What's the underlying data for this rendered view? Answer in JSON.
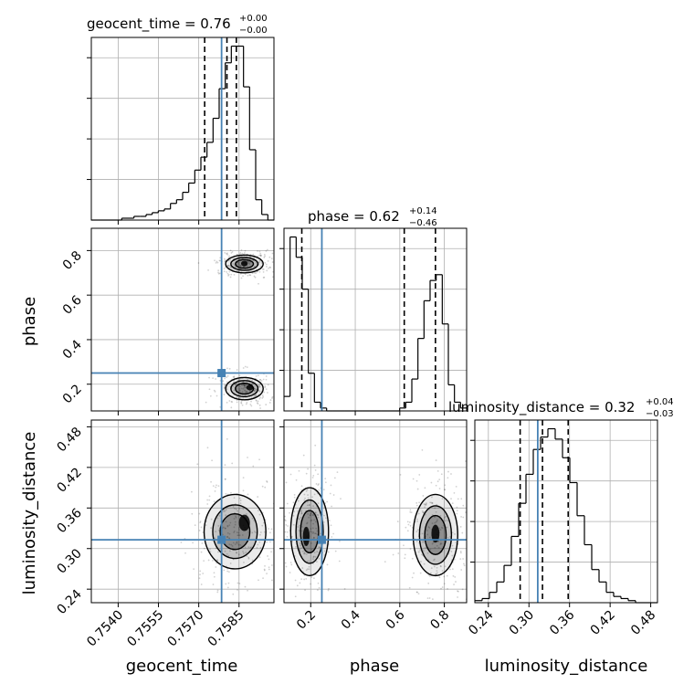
{
  "chart_data": {
    "type": "corner",
    "parameters": [
      "geocent_time",
      "phase",
      "luminosity_distance"
    ],
    "truths": {
      "geocent_time": 0.75785,
      "phase": 0.25,
      "luminosity_distance": 0.313
    },
    "axes": {
      "geocent_time": {
        "range": [
          0.753,
          0.7598
        ],
        "ticks": [
          0.754,
          0.7555,
          0.757,
          0.7585
        ],
        "tick_labels": [
          "0.7540",
          "0.7555",
          "0.7570",
          "0.7585"
        ],
        "label": "geocent_time"
      },
      "phase": {
        "range": [
          0.08,
          0.9
        ],
        "ticks": [
          0.2,
          0.4,
          0.6,
          0.8
        ],
        "tick_labels": [
          "0.2",
          "0.4",
          "0.6",
          "0.8"
        ],
        "label": "phase"
      },
      "luminosity_distance": {
        "range": [
          0.22,
          0.49
        ],
        "ticks": [
          0.24,
          0.3,
          0.36,
          0.42,
          0.48
        ],
        "tick_labels": [
          "0.24",
          "0.30",
          "0.36",
          "0.42",
          "0.48"
        ],
        "label": "luminosity_distance"
      }
    },
    "titles": [
      {
        "param": "geocent_time",
        "name": "geocent_time",
        "value": "0.76",
        "plus": "+0.00",
        "minus": "−0.00"
      },
      {
        "param": "phase",
        "name": "phase",
        "value": "0.62",
        "plus": "+0.14",
        "minus": "−0.46"
      },
      {
        "param": "luminosity_distance",
        "name": "luminosity_distance",
        "value": "0.32",
        "plus": "+0.04",
        "minus": "−0.03"
      }
    ],
    "quantiles": {
      "geocent_time": [
        0.75722,
        0.75805,
        0.7584
      ],
      "phase": [
        0.16,
        0.62,
        0.76
      ],
      "luminosity_distance": [
        0.287,
        0.32,
        0.358
      ]
    },
    "histograms": {
      "geocent_time": {
        "edges_range": [
          0.753,
          0.7598
        ],
        "counts": [
          0,
          0,
          0,
          0,
          0,
          1,
          1,
          2,
          2,
          3,
          4,
          5,
          6,
          9,
          11,
          15,
          20,
          27,
          34,
          42,
          55,
          71,
          85,
          94,
          94,
          72,
          38,
          11,
          3,
          0
        ]
      },
      "phase": {
        "edges_range": [
          0.08,
          0.9
        ],
        "counts": [
          5,
          60,
          53,
          42,
          13,
          3,
          1,
          0,
          0,
          0,
          0,
          0,
          0,
          0,
          0,
          0,
          0,
          0,
          0,
          1,
          3,
          11,
          25,
          38,
          45,
          47,
          30,
          9,
          3,
          1
        ]
      },
      "luminosity_distance": {
        "edges_range": [
          0.22,
          0.49
        ],
        "counts": [
          1,
          2,
          5,
          10,
          18,
          32,
          48,
          62,
          74,
          80,
          84,
          79,
          70,
          58,
          42,
          28,
          16,
          10,
          5,
          3,
          2,
          1,
          0,
          0,
          0
        ]
      }
    },
    "pair_distributions": [
      {
        "x": "geocent_time",
        "y": "phase",
        "modes": [
          {
            "x": [
              0.758,
              0.7594
            ],
            "y": [
              0.7,
              0.78
            ],
            "peak": [
              0.7587,
              0.742
            ]
          },
          {
            "x": [
              0.758,
              0.7594
            ],
            "y": [
              0.13,
              0.23
            ],
            "peak": [
              0.7589,
              0.185
            ]
          }
        ]
      },
      {
        "x": "geocent_time",
        "y": "luminosity_distance",
        "modes": [
          {
            "x": [
              0.7572,
              0.7595
            ],
            "y": [
              0.27,
              0.38
            ],
            "peak": [
              0.7587,
              0.338
            ]
          }
        ]
      },
      {
        "x": "phase",
        "y": "luminosity_distance",
        "modes": [
          {
            "x": [
              0.11,
              0.28
            ],
            "y": [
              0.26,
              0.39
            ],
            "peak": [
              0.18,
              0.318
            ]
          },
          {
            "x": [
              0.66,
              0.86
            ],
            "y": [
              0.26,
              0.38
            ],
            "peak": [
              0.76,
              0.322
            ]
          }
        ]
      }
    ],
    "colors": {
      "hist": "#000000",
      "truth": "#4682b4",
      "grid": "#b0b0b0",
      "density": "#000000"
    }
  }
}
